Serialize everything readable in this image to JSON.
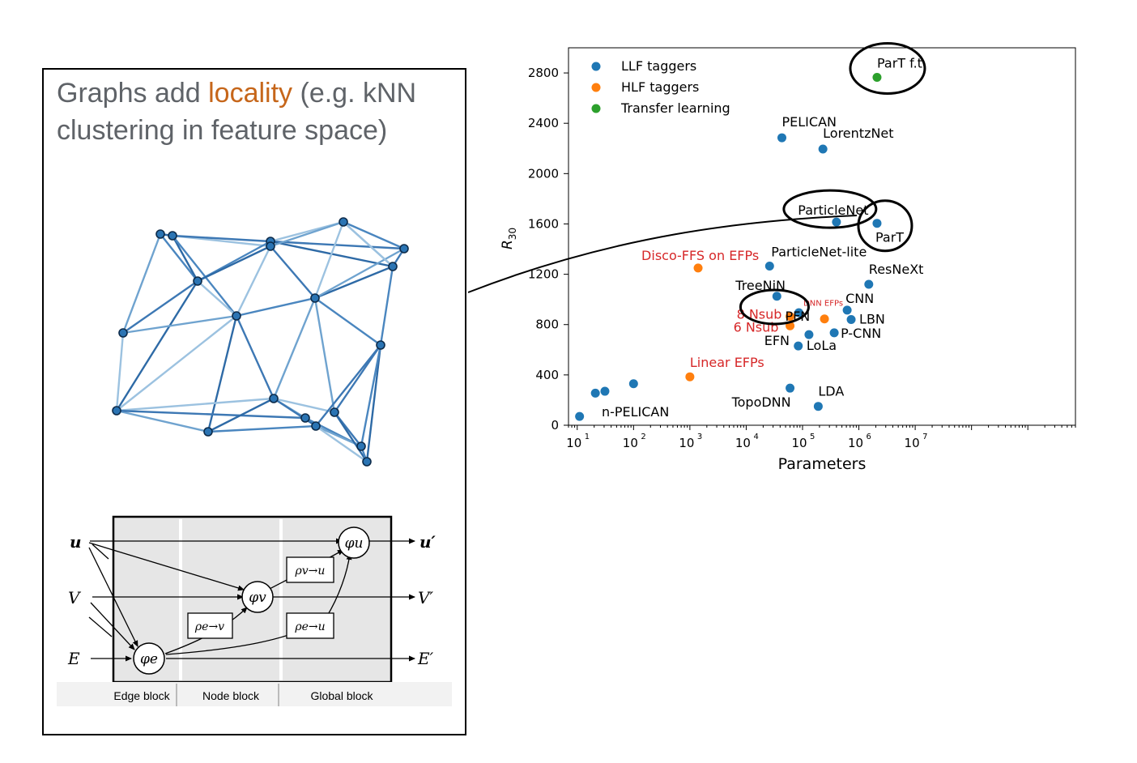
{
  "panel": {
    "title_prefix": "Graphs add ",
    "title_accent": "locality",
    "title_suffix": " (e.g. kNN clustering in feature space)",
    "accent_color": "#c6661a",
    "text_color": "#5f6368"
  },
  "gn_block": {
    "inputs": [
      "u",
      "V",
      "E"
    ],
    "outputs": [
      "u′",
      "V′",
      "E′"
    ],
    "nodes": {
      "phi_e": "φe",
      "phi_v": "φv",
      "phi_u": "φu"
    },
    "aggregators": {
      "rho_ev": "ρe→v",
      "rho_vu": "ρv→u",
      "rho_eu": "ρe→u"
    },
    "section_labels": [
      "Edge block",
      "Node block",
      "Global block"
    ]
  },
  "chart_data": {
    "type": "scatter",
    "title": "",
    "xlabel": "Parameters",
    "ylabel": "R30",
    "xscale": "log",
    "xlim": [
      7,
      7000000000
    ],
    "ylim": [
      0,
      3000
    ],
    "xticks": [
      10,
      100,
      1000,
      10000,
      100000,
      1000000,
      10000000
    ],
    "xtick_labels": [
      "10^1",
      "10^2",
      "10^3",
      "10^4",
      "10^5",
      "10^6",
      "10^7"
    ],
    "yticks": [
      0,
      400,
      800,
      1200,
      1600,
      2000,
      2400,
      2800
    ],
    "legend_position": "top-left",
    "series": [
      {
        "name": "LLF taggers",
        "color": "#1f77b4",
        "points": [
          {
            "x": 11,
            "y": 70
          },
          {
            "x": 21,
            "y": 255
          },
          {
            "x": 31,
            "y": 270
          },
          {
            "x": 100,
            "y": 330
          },
          {
            "x": 43000,
            "y": 2285
          },
          {
            "x": 230000,
            "y": 2195
          },
          {
            "x": 400000,
            "y": 1615
          },
          {
            "x": 2100000,
            "y": 1605
          },
          {
            "x": 26000,
            "y": 1265
          },
          {
            "x": 1500000,
            "y": 1120
          },
          {
            "x": 35000,
            "y": 1025
          },
          {
            "x": 86000,
            "y": 895
          },
          {
            "x": 620000,
            "y": 915
          },
          {
            "x": 730000,
            "y": 840
          },
          {
            "x": 130000,
            "y": 720
          },
          {
            "x": 365000,
            "y": 735
          },
          {
            "x": 84000,
            "y": 630
          },
          {
            "x": 60000,
            "y": 295
          },
          {
            "x": 190000,
            "y": 150
          }
        ]
      },
      {
        "name": "HLF taggers",
        "color": "#ff7f0e",
        "points": [
          {
            "x": 1400,
            "y": 1250
          },
          {
            "x": 60000,
            "y": 865
          },
          {
            "x": 60000,
            "y": 790
          },
          {
            "x": 245000,
            "y": 845
          },
          {
            "x": 1000,
            "y": 385
          }
        ]
      },
      {
        "name": "Transfer learning",
        "color": "#2ca02c",
        "points": [
          {
            "x": 2100000,
            "y": 2765
          }
        ]
      }
    ],
    "annotations": [
      {
        "text": "PELICAN",
        "x": 43000,
        "y": 2285,
        "color": "#000000"
      },
      {
        "text": "LorentzNet",
        "x": 230000,
        "y": 2195,
        "color": "#000000"
      },
      {
        "text": "ParticleNet",
        "x": 400000,
        "y": 1615,
        "color": "#000000"
      },
      {
        "text": "ParT",
        "x": 2100000,
        "y": 1605,
        "color": "#000000"
      },
      {
        "text": "ParT f.t.",
        "x": 2100000,
        "y": 2765,
        "color": "#000000"
      },
      {
        "text": "ParticleNet-lite",
        "x": 26000,
        "y": 1265,
        "color": "#000000"
      },
      {
        "text": "Disco-FFS on EFPs",
        "x": 1400,
        "y": 1250,
        "color": "#d62728"
      },
      {
        "text": "ResNeXt",
        "x": 1500000,
        "y": 1120,
        "color": "#000000"
      },
      {
        "text": "TreeNiN",
        "x": 35000,
        "y": 1025,
        "color": "#000000"
      },
      {
        "text": "PFN",
        "x": 86000,
        "y": 895,
        "color": "#000000"
      },
      {
        "text": "CNN",
        "x": 620000,
        "y": 915,
        "color": "#000000"
      },
      {
        "text": "8 Nsub",
        "x": 60000,
        "y": 865,
        "color": "#d62728"
      },
      {
        "text": "6 Nsub",
        "x": 60000,
        "y": 790,
        "color": "#d62728"
      },
      {
        "text": "DNN EFPs",
        "x": 245000,
        "y": 845,
        "color": "#d62728"
      },
      {
        "text": "LBN",
        "x": 730000,
        "y": 840,
        "color": "#000000"
      },
      {
        "text": "P-CNN",
        "x": 365000,
        "y": 735,
        "color": "#000000"
      },
      {
        "text": "EFN",
        "x": 84000,
        "y": 630,
        "color": "#000000"
      },
      {
        "text": "LoLa",
        "x": 130000,
        "y": 720,
        "color": "#000000"
      },
      {
        "text": "Linear EFPs",
        "x": 1000,
        "y": 385,
        "color": "#d62728"
      },
      {
        "text": "n-PELICAN",
        "x": 31,
        "y": 270,
        "color": "#000000"
      },
      {
        "text": "TopoDNN",
        "x": 60000,
        "y": 295,
        "color": "#000000"
      },
      {
        "text": "LDA",
        "x": 190000,
        "y": 150,
        "color": "#000000"
      }
    ],
    "highlighted": [
      "ParticleNet",
      "ParT",
      "ParT f.t.",
      "PFN"
    ]
  }
}
